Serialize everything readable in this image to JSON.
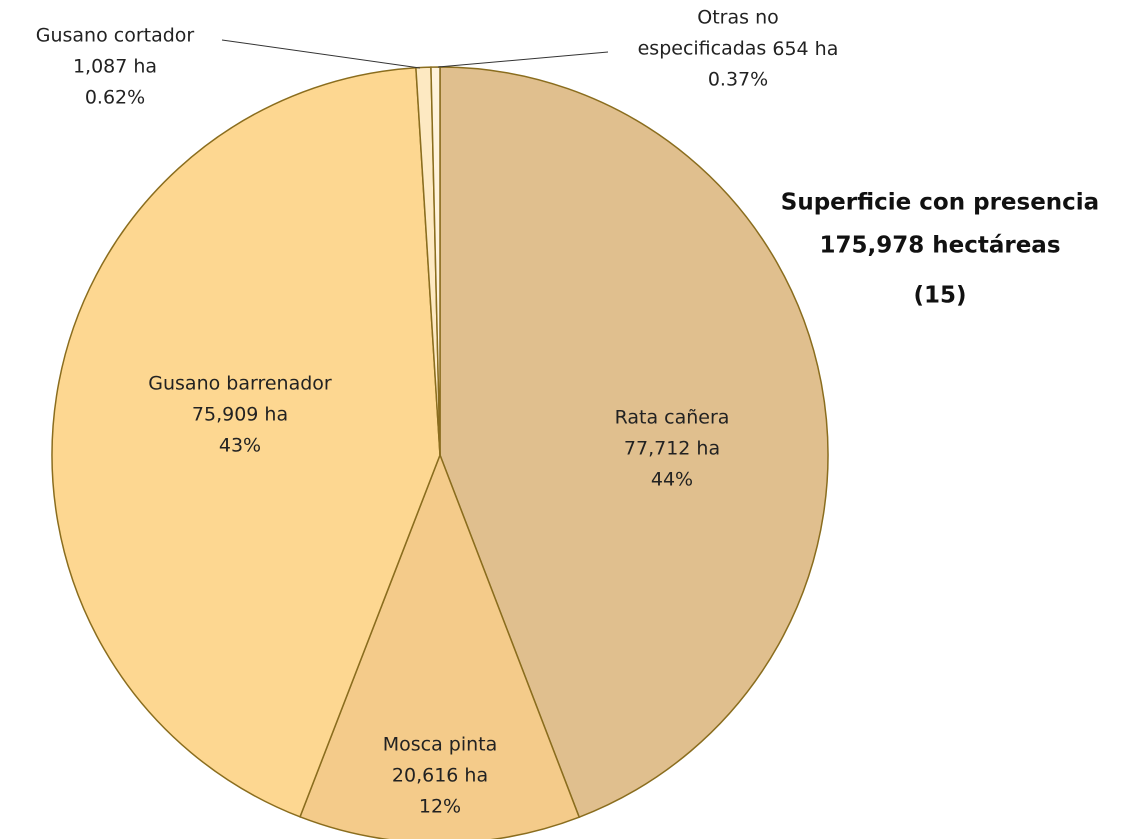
{
  "chart_data": {
    "type": "pie",
    "title_lines": [
      "Superficie con presencia",
      "175,978 hectáreas"
    ],
    "note": "(15)",
    "categories": [
      "Rata cañera",
      "Mosca pinta",
      "Gusano barrenador",
      "Gusano cortador",
      "Otras no especificadas"
    ],
    "values": [
      77712,
      20616,
      75909,
      1087,
      654
    ],
    "value_labels": [
      "77,712 ha",
      "20,616  ha",
      "75,909 ha",
      "1,087 ha",
      "654 ha"
    ],
    "percent_labels": [
      "44%",
      "12%",
      "43%",
      "0.62%",
      "0.37%"
    ],
    "colors": [
      "#e0bf8e",
      "#f4cb8a",
      "#fdd791",
      "#fde9c2",
      "#fff3dc"
    ],
    "stroke": "#8a6d1e"
  }
}
